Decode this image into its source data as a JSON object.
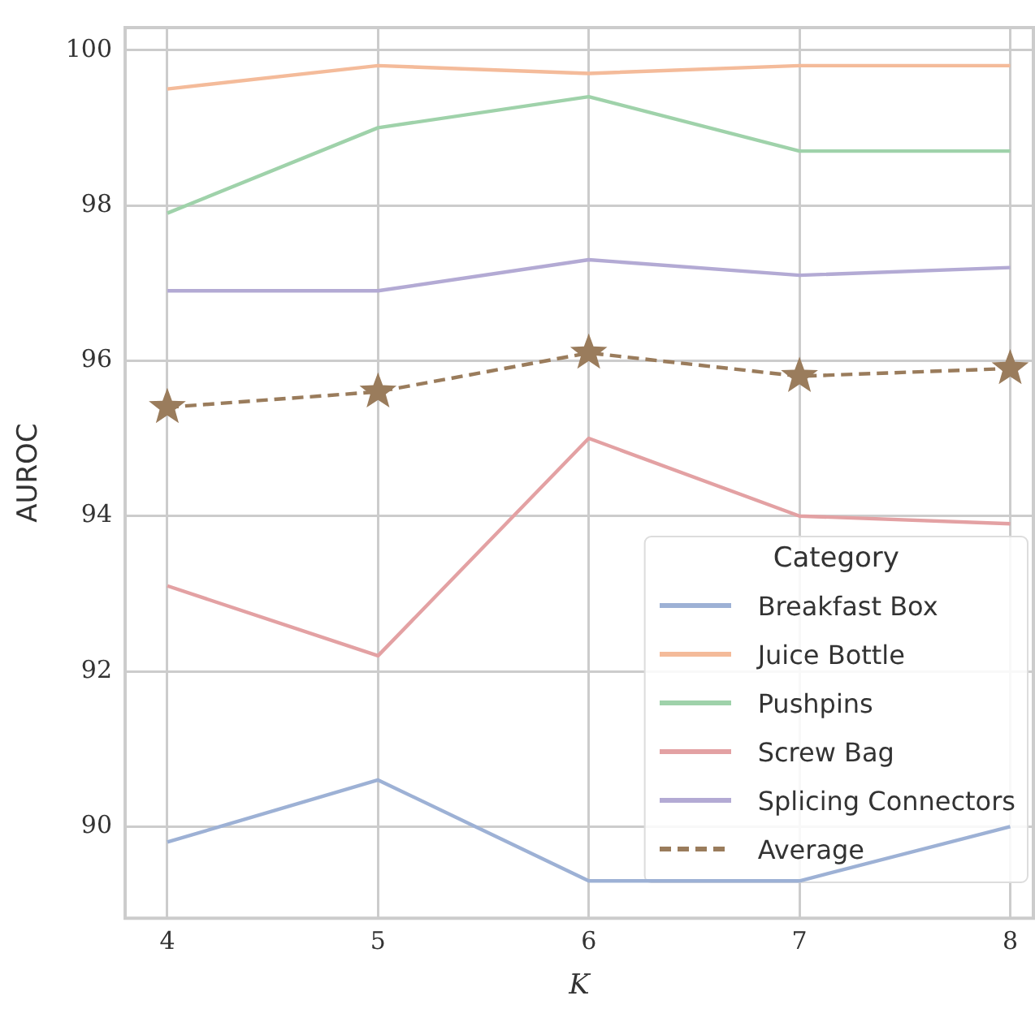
{
  "chart_data": {
    "type": "line",
    "xlabel": "K",
    "ylabel": "AUROC",
    "legend_title": "Category",
    "x": [
      4,
      5,
      6,
      7,
      8
    ],
    "series": [
      {
        "name": "Breakfast Box",
        "color": "#9db1d5",
        "values": [
          89.8,
          90.6,
          89.3,
          89.3,
          90.0
        ]
      },
      {
        "name": "Juice Bottle",
        "color": "#f4bb9a",
        "values": [
          99.5,
          99.8,
          99.7,
          99.8,
          99.8
        ]
      },
      {
        "name": "Pushpins",
        "color": "#9fd2aa",
        "values": [
          97.9,
          99.0,
          99.4,
          98.7,
          98.7
        ]
      },
      {
        "name": "Screw Bag",
        "color": "#e3a1a3",
        "values": [
          93.1,
          92.2,
          95.0,
          94.0,
          93.9
        ]
      },
      {
        "name": "Splicing Connectors",
        "color": "#b3aad4",
        "values": [
          96.9,
          96.9,
          97.3,
          97.1,
          97.2
        ]
      },
      {
        "name": "Average",
        "color": "#9a7c5c",
        "values": [
          95.4,
          95.6,
          96.1,
          95.8,
          95.9
        ],
        "line_style": "dashed",
        "marker": "star"
      }
    ],
    "xlim": [
      3.8,
      8.11
    ],
    "ylim": [
      88.82,
      100.29
    ],
    "xticks": [
      4,
      5,
      6,
      7,
      8
    ],
    "yticks": [
      90,
      92,
      94,
      96,
      98,
      100
    ],
    "grid": true,
    "legend": "bottom right"
  }
}
